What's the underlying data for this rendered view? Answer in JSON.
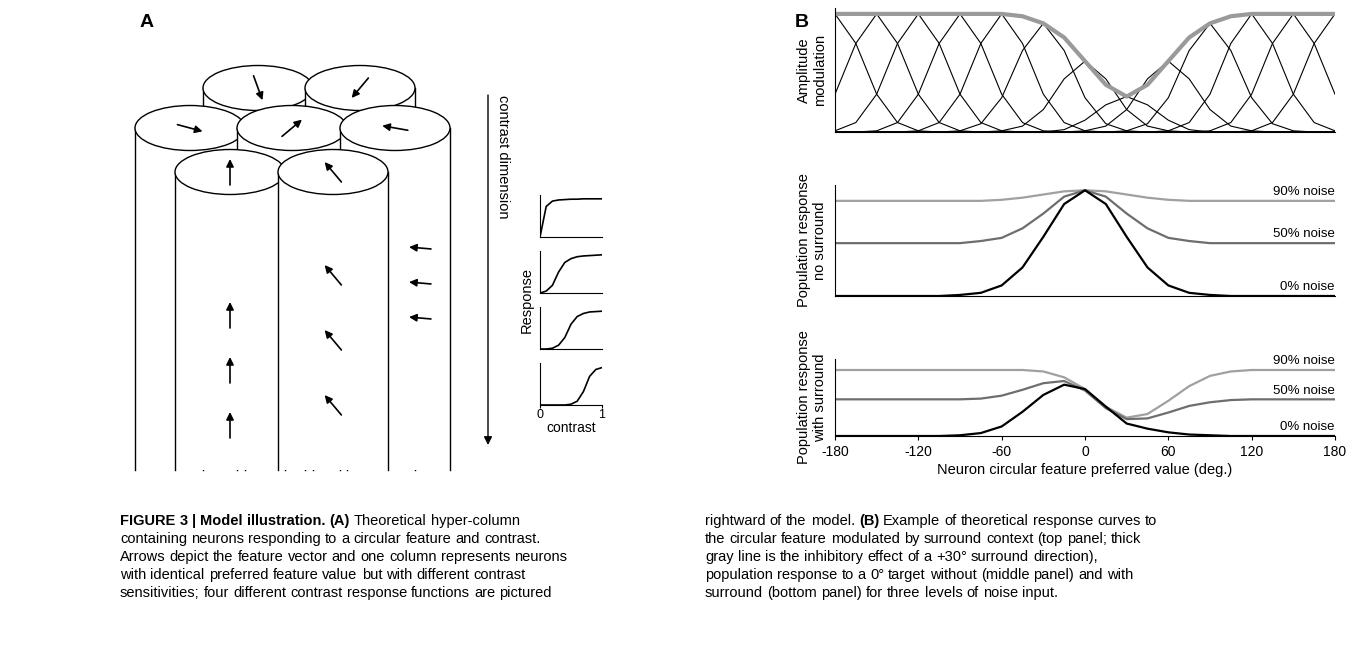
{
  "panel_a": {
    "label": "A",
    "contrast_dimension": "contrast dimension",
    "response_plots": {
      "type": "line",
      "x": [
        0,
        0.1,
        0.2,
        0.3,
        0.4,
        0.5,
        0.6,
        0.7,
        0.8,
        0.9,
        1
      ],
      "series": [
        {
          "color": "#000000",
          "values": [
            0,
            0.8,
            0.94,
            0.97,
            0.98,
            0.99,
            0.99,
            1,
            1,
            1,
            1
          ]
        },
        {
          "color": "#000000",
          "values": [
            0,
            0.05,
            0.2,
            0.55,
            0.8,
            0.9,
            0.95,
            0.97,
            0.98,
            0.99,
            1
          ]
        },
        {
          "color": "#000000",
          "values": [
            0,
            0,
            0.02,
            0.1,
            0.3,
            0.65,
            0.85,
            0.93,
            0.97,
            0.98,
            0.99
          ]
        },
        {
          "color": "#000000",
          "values": [
            0,
            0,
            0,
            0,
            0,
            0.02,
            0.1,
            0.35,
            0.75,
            0.93,
            0.98
          ]
        }
      ],
      "xlim": [
        0,
        1
      ],
      "ylim": [
        0,
        1.1
      ],
      "xticks": [
        0,
        1
      ],
      "x_label": "contrast",
      "y_label": "Response"
    }
  },
  "panel_b": {
    "label": "B"
  },
  "chart_data": [
    {
      "type": "line",
      "y_label": "Amplitude\nmodulation",
      "x": [
        -180,
        -165,
        -150,
        -135,
        -120,
        -105,
        -90,
        -75,
        -60,
        -45,
        -30,
        -15,
        0,
        15,
        30,
        45,
        60,
        75,
        90,
        105,
        120,
        135,
        150,
        165,
        180
      ],
      "series": [
        {
          "color": "#000000",
          "values": [
            1,
            0.75,
            0.32,
            0.08,
            0.01,
            0,
            0,
            0,
            0,
            0,
            0,
            0,
            0,
            0,
            0,
            0,
            0,
            0,
            0,
            0,
            0,
            0,
            0,
            0,
            0
          ]
        },
        {
          "color": "#000000",
          "values": [
            0.32,
            0.75,
            1,
            0.75,
            0.32,
            0.08,
            0.01,
            0,
            0,
            0,
            0,
            0,
            0,
            0,
            0,
            0,
            0,
            0,
            0,
            0,
            0,
            0,
            0,
            0,
            0
          ]
        },
        {
          "color": "#000000",
          "values": [
            0.01,
            0.08,
            0.32,
            0.75,
            1,
            0.75,
            0.32,
            0.08,
            0.01,
            0,
            0,
            0,
            0,
            0,
            0,
            0,
            0,
            0,
            0,
            0,
            0,
            0,
            0,
            0,
            0
          ]
        },
        {
          "color": "#000000",
          "values": [
            0,
            0,
            0.01,
            0.08,
            0.32,
            0.75,
            1,
            0.75,
            0.32,
            0.08,
            0.01,
            0,
            0,
            0,
            0,
            0,
            0,
            0,
            0,
            0,
            0,
            0,
            0,
            0,
            0
          ]
        },
        {
          "color": "#000000",
          "values": [
            0,
            0,
            0,
            0,
            0.01,
            0.08,
            0.32,
            0.75,
            1,
            0.75,
            0.32,
            0.08,
            0.01,
            0,
            0,
            0,
            0,
            0,
            0,
            0,
            0,
            0,
            0,
            0,
            0
          ]
        },
        {
          "color": "#000000",
          "values": [
            0,
            0,
            0,
            0,
            0,
            0,
            0.01,
            0.07,
            0.29,
            0.69,
            0.92,
            0.69,
            0.29,
            0.07,
            0.01,
            0,
            0,
            0,
            0,
            0,
            0,
            0,
            0,
            0,
            0
          ]
        },
        {
          "color": "#000000",
          "values": [
            0,
            0,
            0,
            0,
            0,
            0,
            0,
            0,
            0.01,
            0.05,
            0.19,
            0.45,
            0.6,
            0.45,
            0.19,
            0.05,
            0.01,
            0,
            0,
            0,
            0,
            0,
            0,
            0,
            0
          ]
        },
        {
          "color": "#000000",
          "values": [
            0,
            0,
            0,
            0,
            0,
            0,
            0,
            0,
            0,
            0,
            0,
            0.02,
            0.1,
            0.23,
            0.3,
            0.23,
            0.1,
            0.02,
            0,
            0,
            0,
            0,
            0,
            0,
            0
          ]
        },
        {
          "color": "#000000",
          "values": [
            0,
            0,
            0,
            0,
            0,
            0,
            0,
            0,
            0,
            0,
            0,
            0,
            0.01,
            0.05,
            0.19,
            0.45,
            0.6,
            0.45,
            0.19,
            0.05,
            0.01,
            0,
            0,
            0,
            0
          ]
        },
        {
          "color": "#000000",
          "values": [
            0,
            0,
            0,
            0,
            0,
            0,
            0,
            0,
            0,
            0,
            0,
            0,
            0,
            0,
            0.01,
            0.07,
            0.29,
            0.69,
            0.92,
            0.69,
            0.29,
            0.07,
            0.01,
            0,
            0
          ]
        },
        {
          "color": "#000000",
          "values": [
            0,
            0,
            0,
            0,
            0,
            0,
            0,
            0,
            0,
            0,
            0,
            0,
            0,
            0,
            0,
            0,
            0.01,
            0.08,
            0.32,
            0.75,
            1,
            0.75,
            0.32,
            0.08,
            0.01
          ]
        },
        {
          "color": "#000000",
          "values": [
            0,
            0,
            0,
            0,
            0,
            0,
            0,
            0,
            0,
            0,
            0,
            0,
            0,
            0,
            0,
            0,
            0,
            0,
            0.01,
            0.08,
            0.32,
            0.75,
            1,
            0.75,
            0.32
          ]
        },
        {
          "color": "#000000",
          "values": [
            0,
            0,
            0,
            0,
            0,
            0,
            0,
            0,
            0,
            0,
            0,
            0,
            0,
            0,
            0,
            0,
            0,
            0,
            0,
            0,
            0.01,
            0.08,
            0.32,
            0.75,
            1
          ]
        },
        {
          "color": "#9a9a9a",
          "values": [
            1,
            1,
            1,
            1,
            1,
            1,
            1,
            1,
            1,
            0.98,
            0.92,
            0.8,
            0.6,
            0.4,
            0.3,
            0.4,
            0.6,
            0.8,
            0.92,
            0.98,
            1,
            1,
            1,
            1,
            1
          ]
        }
      ],
      "xlim": [
        -180,
        180
      ],
      "ylim": [
        0,
        1.05
      ],
      "tick_labels": false
    },
    {
      "type": "line",
      "y_label": "Population response\nno surround",
      "x": [
        -180,
        -165,
        -150,
        -135,
        -120,
        -105,
        -90,
        -75,
        -60,
        -45,
        -30,
        -15,
        0,
        15,
        30,
        45,
        60,
        75,
        90,
        105,
        120,
        135,
        150,
        165,
        180
      ],
      "series": [
        {
          "name": "90% noise",
          "color": "#a0a0a0",
          "values": [
            0.9,
            0.9,
            0.9,
            0.9,
            0.9,
            0.9,
            0.9,
            0.9,
            0.91,
            0.93,
            0.96,
            0.99,
            1,
            0.99,
            0.96,
            0.93,
            0.91,
            0.9,
            0.9,
            0.9,
            0.9,
            0.9,
            0.9,
            0.9,
            0.9
          ]
        },
        {
          "name": "50% noise",
          "color": "#6e6e6e",
          "values": [
            0.5,
            0.5,
            0.5,
            0.5,
            0.5,
            0.5,
            0.5,
            0.52,
            0.55,
            0.64,
            0.78,
            0.94,
            1,
            0.94,
            0.78,
            0.64,
            0.55,
            0.52,
            0.5,
            0.5,
            0.5,
            0.5,
            0.5,
            0.5,
            0.5
          ]
        },
        {
          "name": "0% noise",
          "color": "#000000",
          "values": [
            0,
            0,
            0,
            0,
            0,
            0,
            0.01,
            0.03,
            0.1,
            0.27,
            0.56,
            0.87,
            1,
            0.87,
            0.56,
            0.27,
            0.1,
            0.03,
            0.01,
            0,
            0,
            0,
            0,
            0,
            0
          ]
        }
      ],
      "xlim": [
        -180,
        180
      ],
      "ylim": [
        0,
        1.05
      ],
      "tick_labels": false
    },
    {
      "type": "line",
      "y_label": "Population response\nwith surround",
      "x_label": "Neuron circular feature preferred value (deg.)",
      "x": [
        -180,
        -165,
        -150,
        -135,
        -120,
        -105,
        -90,
        -75,
        -60,
        -45,
        -30,
        -15,
        0,
        15,
        30,
        45,
        60,
        75,
        90,
        105,
        120,
        135,
        150,
        165,
        180
      ],
      "series": [
        {
          "name": "90% noise",
          "color": "#a0a0a0",
          "values": [
            0.9,
            0.9,
            0.9,
            0.9,
            0.9,
            0.9,
            0.9,
            0.9,
            0.9,
            0.9,
            0.88,
            0.8,
            0.64,
            0.4,
            0.25,
            0.3,
            0.48,
            0.68,
            0.82,
            0.88,
            0.9,
            0.9,
            0.9,
            0.9,
            0.9
          ]
        },
        {
          "name": "50% noise",
          "color": "#6e6e6e",
          "values": [
            0.5,
            0.5,
            0.5,
            0.5,
            0.5,
            0.5,
            0.5,
            0.51,
            0.55,
            0.63,
            0.72,
            0.75,
            0.62,
            0.38,
            0.23,
            0.24,
            0.32,
            0.41,
            0.46,
            0.49,
            0.5,
            0.5,
            0.5,
            0.5,
            0.5
          ]
        },
        {
          "name": "0% noise",
          "color": "#000000",
          "values": [
            0,
            0,
            0,
            0,
            0,
            0,
            0.01,
            0.04,
            0.13,
            0.33,
            0.56,
            0.7,
            0.64,
            0.4,
            0.17,
            0.1,
            0.05,
            0.02,
            0.01,
            0,
            0,
            0,
            0,
            0,
            0
          ]
        }
      ],
      "xlim": [
        -180,
        180
      ],
      "ylim": [
        0,
        1.05
      ],
      "xticks": [
        -180,
        -120,
        -60,
        0,
        60,
        120,
        180
      ],
      "tick_labels": "x"
    }
  ],
  "caption": {
    "bold": [
      "FIGURE 3 | Model illustration.",
      "(A)",
      "(B)"
    ],
    "left_lines": [
      "FIGURE 3 | Model illustration. (A) Theoretical hyper-column",
      "containing neurons responding to a circular feature and contrast.",
      "Arrows depict the feature vector and one column represents neurons",
      "with identical preferred feature value but with different contrast",
      "sensitivities; four different contrast response functions are pictured"
    ],
    "right_lines": [
      "rightward of the model. (B) Example of theoretical response curves to",
      "the circular feature modulated by surround context (top panel; thick",
      "gray line is the inhibitory effect of a +30° surround direction),",
      "population response to a 0° target without (middle panel) and with",
      "surround (bottom panel) for three levels of noise input."
    ]
  }
}
